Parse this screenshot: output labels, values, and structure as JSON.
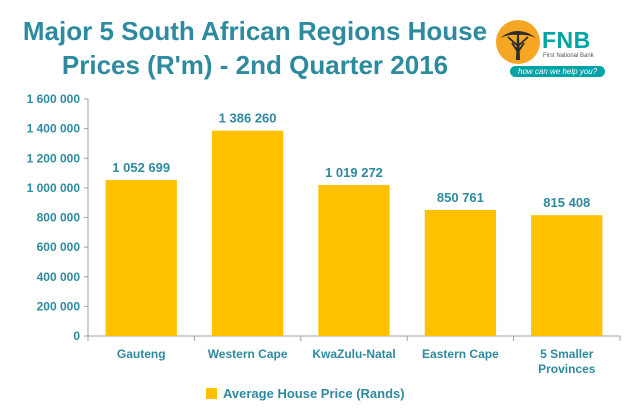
{
  "brand": {
    "name": "FNB",
    "subname": "First National Bank",
    "tagline": "how can we help you?"
  },
  "chart_data": {
    "type": "bar",
    "title_lines": [
      "Major 5 South African Regions House",
      "Prices (R'm) - 2nd Quarter 2016"
    ],
    "categories": [
      "Gauteng",
      "Western Cape",
      "KwaZulu-Natal",
      "Eastern Cape",
      [
        "5 Smaller",
        "Provinces"
      ]
    ],
    "series": [
      {
        "name": "Average House Price  (Rands)",
        "values": [
          1052699,
          1386260,
          1019272,
          850761,
          815408
        ]
      }
    ],
    "data_labels": [
      "1 052 699",
      "1 386 260",
      "1 019 272",
      "850 761",
      "815 408"
    ],
    "ylim": [
      0,
      1600000
    ],
    "ytick_step": 200000,
    "ytick_labels": [
      "0",
      "200 000",
      "400 000",
      "600 000",
      "800 000",
      "1 000 000",
      "1 200 000",
      "1 400 000",
      "1 600 000"
    ],
    "xlabel": "",
    "ylabel": "",
    "grid": false,
    "legend_position": "bottom",
    "colors": {
      "bar": "#ffc000",
      "text": "#2e8a9e",
      "axis": "#a0a0a0"
    }
  }
}
